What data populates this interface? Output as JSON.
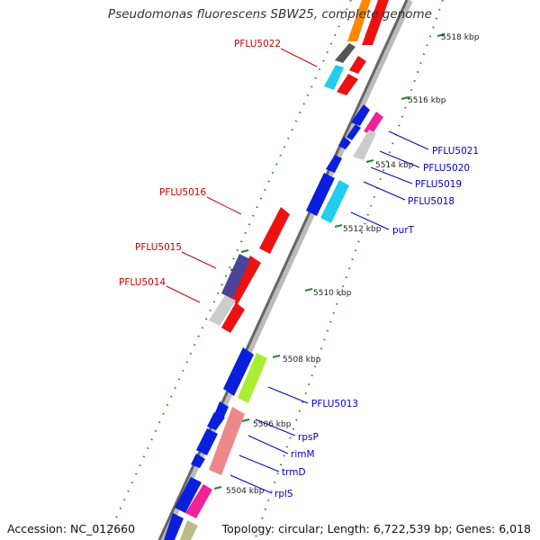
{
  "title": "Pseudomonas fluorescens SBW25, complete genome",
  "footer": {
    "accession": "Accession: NC_012660",
    "summary": "Topology: circular; Length: 6,722,539 bp; Genes: 6,018"
  },
  "colors": {
    "forward_label": "#cc0000",
    "reverse_label": "#0000cc",
    "tick": "#228822",
    "backbone_dark": "#666666",
    "backbone_light": "#bbbbbb"
  },
  "scale_labels": [
    "5518 kbp",
    "5516 kbp",
    "5514 kbp",
    "5512 kbp",
    "5510 kbp",
    "5508 kbp",
    "5506 kbp",
    "5504 kbp"
  ],
  "forward_labels": [
    "PFLU5022",
    "PFLU5016",
    "PFLU5015",
    "PFLU5014"
  ],
  "reverse_labels": [
    "PFLU5021",
    "PFLU5020",
    "PFLU5019",
    "PFLU5018",
    "purT",
    "PFLU5013",
    "rpsP",
    "rimM",
    "trmD",
    "rplS"
  ]
}
